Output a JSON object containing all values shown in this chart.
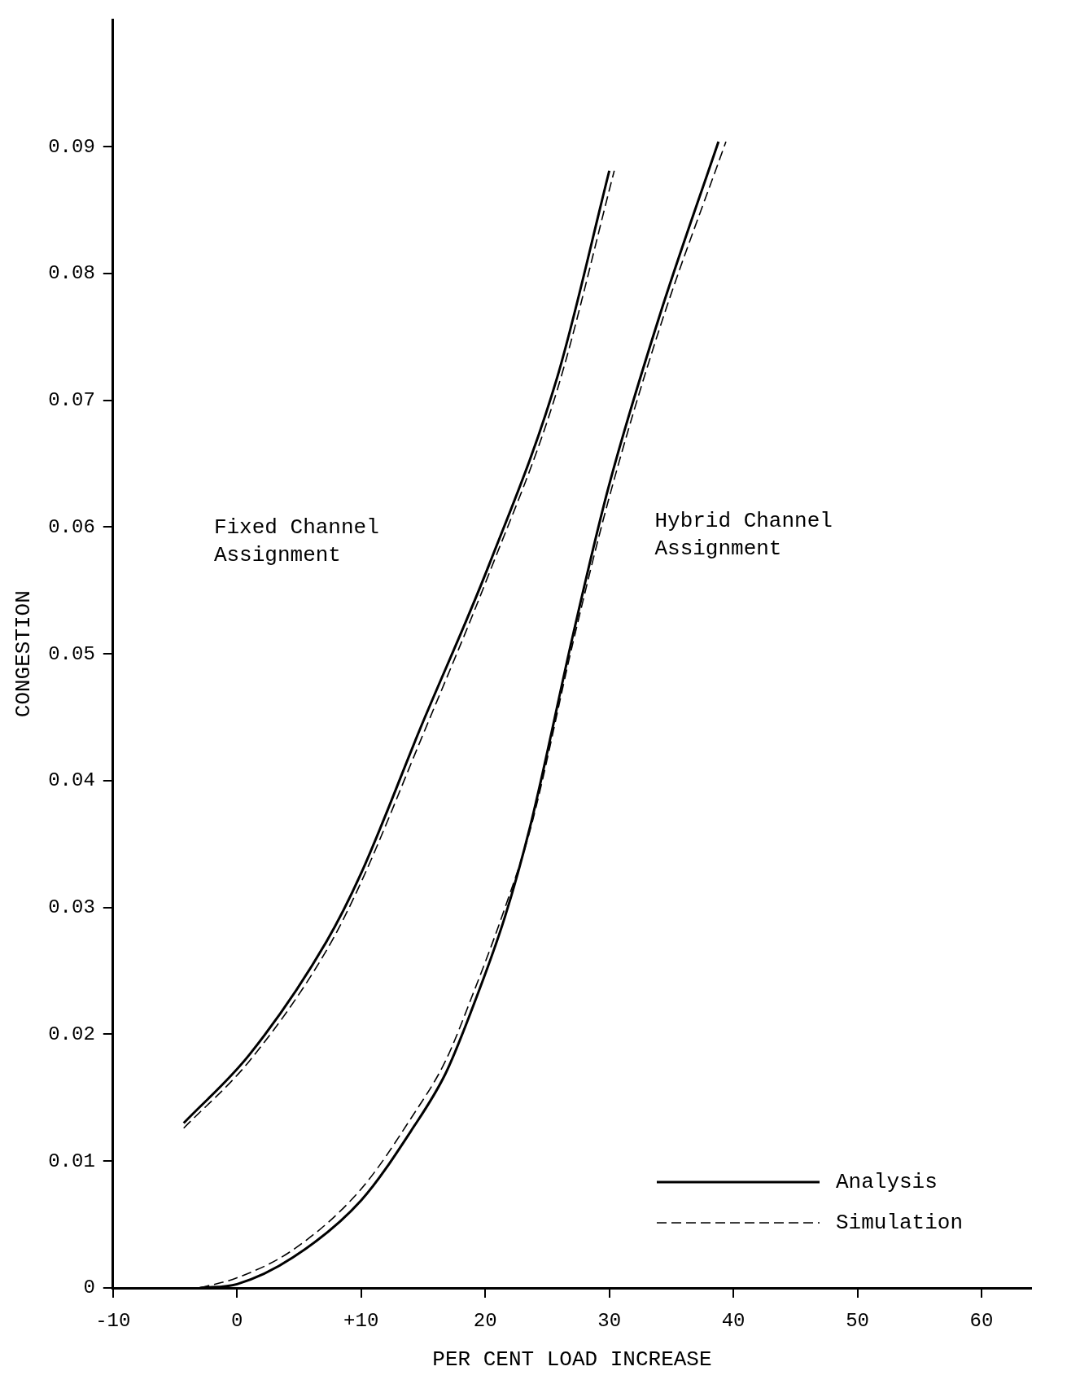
{
  "chart_data": {
    "type": "line",
    "xlabel": "PER CENT LOAD INCREASE",
    "ylabel": "CONGESTION",
    "xlim": [
      -10,
      64
    ],
    "ylim": [
      0,
      0.1
    ],
    "xticks": [
      -10,
      0,
      {
        "value": 10,
        "label": "+10"
      },
      20,
      30,
      40,
      50,
      60
    ],
    "yticks": [
      0,
      0.01,
      0.02,
      0.03,
      0.04,
      0.05,
      0.06,
      0.07,
      0.08,
      0.09
    ],
    "grid": false,
    "legend": "bottom right",
    "marker": "none",
    "series": [
      {
        "name": "Analysis",
        "color": "#000000",
        "line_style": "solid",
        "x": [
          -4.3,
          1.0,
          7.2,
          10,
          14.8,
          20.3,
          25.8,
          30.0
        ],
        "values": [
          0.013,
          0.0184,
          0.0273,
          0.0327,
          0.0442,
          0.057,
          0.0718,
          0.0881
        ]
      },
      {
        "name": "Simulation",
        "color": "#000000",
        "line_style": "dashed",
        "x": [
          -4.3,
          1.0,
          7.2,
          10,
          14.8,
          20.3,
          25.8,
          30.4
        ],
        "values": [
          0.0126,
          0.0179,
          0.0266,
          0.032,
          0.0432,
          0.0563,
          0.0708,
          0.0881
        ]
      },
      {
        "color": "#000000",
        "line_style": "solid",
        "x": [
          -3,
          0,
          4.5,
          10,
          14.1,
          16.8,
          18.9,
          21.6,
          23.7,
          27.1,
          29.9,
          34,
          38.8
        ],
        "values": [
          0,
          0.0003,
          0.0024,
          0.0069,
          0.0125,
          0.0169,
          0.0219,
          0.0293,
          0.0367,
          0.0516,
          0.063,
          0.0765,
          0.0904
        ]
      },
      {
        "color": "#000000",
        "line_style": "dashed",
        "x": [
          -3,
          0,
          4.5,
          10,
          14.1,
          16.8,
          18.9,
          21.6,
          23.7,
          27.1,
          29.9,
          34,
          39.4
        ],
        "values": [
          0,
          0.0008,
          0.003,
          0.0078,
          0.0135,
          0.0179,
          0.0229,
          0.03,
          0.0364,
          0.051,
          0.062,
          0.0755,
          0.0904
        ]
      }
    ],
    "annotations": [
      "Fixed Channel\nAssignment",
      "Hybrid Channel\nAssignment"
    ]
  }
}
